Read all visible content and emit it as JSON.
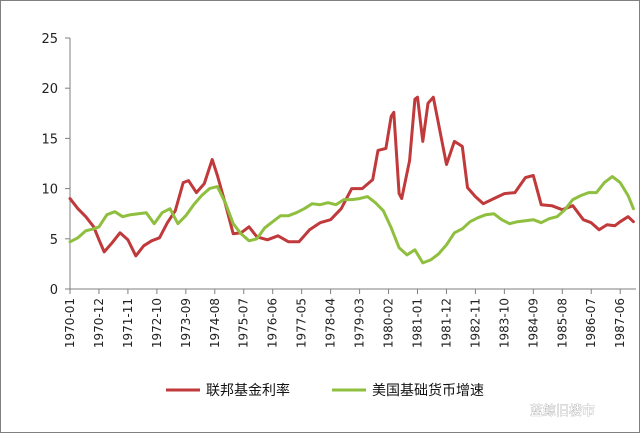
{
  "chart_data": {
    "type": "line",
    "title": "",
    "xlabel": "",
    "ylabel": "",
    "ylim": [
      0,
      25
    ],
    "yticks": [
      0,
      5,
      10,
      15,
      20,
      25
    ],
    "x_tick_labels": [
      "1970-01",
      "1970-12",
      "1971-11",
      "1972-10",
      "1973-09",
      "1974-08",
      "1975-07",
      "1976-06",
      "1977-05",
      "1978-04",
      "1979-03",
      "1980-02",
      "1981-01",
      "1981-12",
      "1982-11",
      "1983-10",
      "1984-09",
      "1985-08",
      "1986-07",
      "1987-06"
    ],
    "grid": false,
    "legend_position": "bottom",
    "colors": {
      "fed_rate": "#c0393b",
      "money_growth": "#8fbf3f",
      "axis": "#7f7f7f"
    },
    "series": [
      {
        "name": "联邦基金利率",
        "points": [
          [
            "1970-01",
            9.0
          ],
          [
            "1970-04",
            8.0
          ],
          [
            "1970-07",
            7.2
          ],
          [
            "1970-10",
            6.2
          ],
          [
            "1970-12",
            4.9
          ],
          [
            "1971-02",
            3.7
          ],
          [
            "1971-05",
            4.6
          ],
          [
            "1971-08",
            5.6
          ],
          [
            "1971-11",
            4.9
          ],
          [
            "1972-02",
            3.3
          ],
          [
            "1972-05",
            4.3
          ],
          [
            "1972-08",
            4.8
          ],
          [
            "1972-11",
            5.1
          ],
          [
            "1973-02",
            6.6
          ],
          [
            "1973-05",
            7.8
          ],
          [
            "1973-08",
            10.6
          ],
          [
            "1973-10",
            10.8
          ],
          [
            "1974-01",
            9.6
          ],
          [
            "1974-04",
            10.5
          ],
          [
            "1974-07",
            12.9
          ],
          [
            "1974-09",
            11.3
          ],
          [
            "1974-12",
            8.5
          ],
          [
            "1975-03",
            5.5
          ],
          [
            "1975-06",
            5.6
          ],
          [
            "1975-09",
            6.2
          ],
          [
            "1975-12",
            5.2
          ],
          [
            "1976-04",
            4.9
          ],
          [
            "1976-08",
            5.3
          ],
          [
            "1976-12",
            4.7
          ],
          [
            "1977-04",
            4.7
          ],
          [
            "1977-08",
            5.9
          ],
          [
            "1977-12",
            6.6
          ],
          [
            "1978-04",
            6.9
          ],
          [
            "1978-08",
            8.0
          ],
          [
            "1978-12",
            10.0
          ],
          [
            "1979-04",
            10.0
          ],
          [
            "1979-08",
            10.9
          ],
          [
            "1979-10",
            13.8
          ],
          [
            "1980-01",
            14.0
          ],
          [
            "1980-03",
            17.2
          ],
          [
            "1980-04",
            17.6
          ],
          [
            "1980-06",
            9.5
          ],
          [
            "1980-07",
            9.0
          ],
          [
            "1980-10",
            12.8
          ],
          [
            "1980-12",
            18.9
          ],
          [
            "1981-01",
            19.1
          ],
          [
            "1981-03",
            14.7
          ],
          [
            "1981-05",
            18.5
          ],
          [
            "1981-07",
            19.1
          ],
          [
            "1981-10",
            15.1
          ],
          [
            "1981-12",
            12.4
          ],
          [
            "1982-03",
            14.7
          ],
          [
            "1982-06",
            14.2
          ],
          [
            "1982-08",
            10.1
          ],
          [
            "1982-11",
            9.2
          ],
          [
            "1983-02",
            8.5
          ],
          [
            "1983-06",
            9.0
          ],
          [
            "1983-10",
            9.5
          ],
          [
            "1984-02",
            9.6
          ],
          [
            "1984-06",
            11.1
          ],
          [
            "1984-09",
            11.3
          ],
          [
            "1984-12",
            8.4
          ],
          [
            "1985-04",
            8.3
          ],
          [
            "1985-08",
            7.9
          ],
          [
            "1985-12",
            8.3
          ],
          [
            "1986-04",
            6.9
          ],
          [
            "1986-07",
            6.6
          ],
          [
            "1986-10",
            5.9
          ],
          [
            "1987-01",
            6.4
          ],
          [
            "1987-04",
            6.3
          ],
          [
            "1987-06",
            6.7
          ],
          [
            "1987-09",
            7.2
          ],
          [
            "1987-11",
            6.7
          ]
        ]
      },
      {
        "name": "美国基础货币增速",
        "points": [
          [
            "1970-01",
            4.7
          ],
          [
            "1970-04",
            5.1
          ],
          [
            "1970-07",
            5.8
          ],
          [
            "1970-10",
            6.0
          ],
          [
            "1970-12",
            6.2
          ],
          [
            "1971-03",
            7.4
          ],
          [
            "1971-06",
            7.7
          ],
          [
            "1971-09",
            7.2
          ],
          [
            "1971-12",
            7.4
          ],
          [
            "1972-03",
            7.5
          ],
          [
            "1972-06",
            7.6
          ],
          [
            "1972-09",
            6.5
          ],
          [
            "1972-12",
            7.6
          ],
          [
            "1973-03",
            8.0
          ],
          [
            "1973-06",
            6.5
          ],
          [
            "1973-09",
            7.3
          ],
          [
            "1973-12",
            8.4
          ],
          [
            "1974-03",
            9.3
          ],
          [
            "1974-06",
            10.0
          ],
          [
            "1974-09",
            10.2
          ],
          [
            "1974-12",
            8.6
          ],
          [
            "1975-03",
            6.5
          ],
          [
            "1975-06",
            5.5
          ],
          [
            "1975-09",
            4.8
          ],
          [
            "1975-12",
            5.0
          ],
          [
            "1976-03",
            6.1
          ],
          [
            "1976-06",
            6.7
          ],
          [
            "1976-09",
            7.3
          ],
          [
            "1976-12",
            7.3
          ],
          [
            "1977-03",
            7.6
          ],
          [
            "1977-06",
            8.0
          ],
          [
            "1977-09",
            8.5
          ],
          [
            "1977-12",
            8.4
          ],
          [
            "1978-03",
            8.6
          ],
          [
            "1978-06",
            8.4
          ],
          [
            "1978-09",
            8.9
          ],
          [
            "1978-12",
            8.9
          ],
          [
            "1979-03",
            9.0
          ],
          [
            "1979-06",
            9.2
          ],
          [
            "1979-09",
            8.6
          ],
          [
            "1979-12",
            7.8
          ],
          [
            "1980-03",
            6.1
          ],
          [
            "1980-06",
            4.1
          ],
          [
            "1980-09",
            3.4
          ],
          [
            "1980-12",
            3.9
          ],
          [
            "1981-03",
            2.6
          ],
          [
            "1981-06",
            2.9
          ],
          [
            "1981-09",
            3.5
          ],
          [
            "1981-12",
            4.4
          ],
          [
            "1982-03",
            5.6
          ],
          [
            "1982-06",
            6.0
          ],
          [
            "1982-09",
            6.7
          ],
          [
            "1982-12",
            7.1
          ],
          [
            "1983-03",
            7.4
          ],
          [
            "1983-06",
            7.5
          ],
          [
            "1983-09",
            6.9
          ],
          [
            "1983-12",
            6.5
          ],
          [
            "1984-03",
            6.7
          ],
          [
            "1984-06",
            6.8
          ],
          [
            "1984-09",
            6.9
          ],
          [
            "1984-12",
            6.6
          ],
          [
            "1985-03",
            7.0
          ],
          [
            "1985-06",
            7.2
          ],
          [
            "1985-09",
            7.9
          ],
          [
            "1985-12",
            8.9
          ],
          [
            "1986-03",
            9.3
          ],
          [
            "1986-06",
            9.6
          ],
          [
            "1986-09",
            9.6
          ],
          [
            "1986-12",
            10.6
          ],
          [
            "1987-03",
            11.2
          ],
          [
            "1987-06",
            10.6
          ],
          [
            "1987-09",
            9.3
          ],
          [
            "1987-11",
            8.0
          ]
        ]
      }
    ]
  },
  "watermark": {
    "text": "蓝鲸旧楼市"
  }
}
